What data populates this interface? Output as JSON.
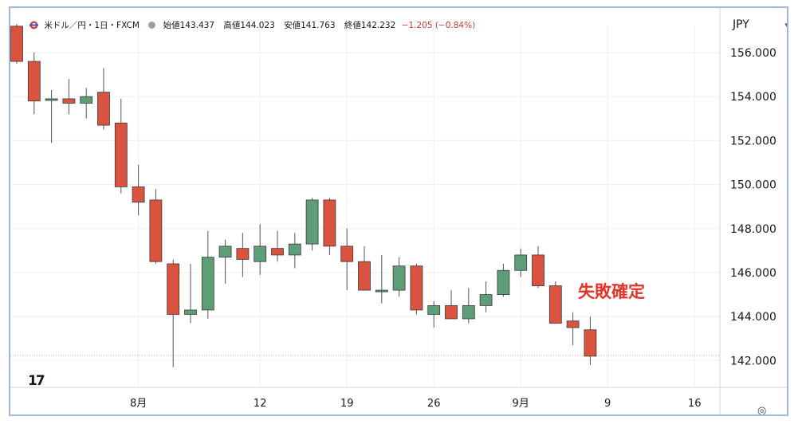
{
  "header": {
    "symbol": "米ドル／円・1日・FXCM",
    "open_label": "始値",
    "open": "143.437",
    "high_label": "高値",
    "high": "144.023",
    "low_label": "安値",
    "low": "141.763",
    "close_label": "終値",
    "close": "142.232",
    "change": "−1.205 (−0.84%)"
  },
  "currency": "JPY",
  "annotation": "失敗確定",
  "colors": {
    "up": "#5d9e76",
    "down": "#d9533f",
    "wick": "#555555"
  },
  "chart_data": {
    "type": "candlestick",
    "y_ticks": [
      "156.000",
      "154.000",
      "152.000",
      "150.000",
      "148.000",
      "146.000",
      "144.000",
      "142.000"
    ],
    "ylim": [
      141.2,
      157.2
    ],
    "x_ticks": [
      {
        "label": "8月",
        "index": 7
      },
      {
        "label": "12",
        "index": 14
      },
      {
        "label": "19",
        "index": 19
      },
      {
        "label": "26",
        "index": 24
      },
      {
        "label": "9月",
        "index": 29
      },
      {
        "label": "9",
        "index": 34
      },
      {
        "label": "16",
        "index": 39
      }
    ],
    "candles": [
      {
        "o": 157.2,
        "h": 157.3,
        "l": 155.5,
        "c": 155.6
      },
      {
        "o": 155.6,
        "h": 156.0,
        "l": 153.2,
        "c": 153.8
      },
      {
        "o": 153.9,
        "h": 154.3,
        "l": 151.9,
        "c": 153.9
      },
      {
        "o": 153.9,
        "h": 154.8,
        "l": 153.2,
        "c": 153.7
      },
      {
        "o": 153.7,
        "h": 154.4,
        "l": 153.0,
        "c": 154.0
      },
      {
        "o": 154.2,
        "h": 155.3,
        "l": 152.5,
        "c": 152.7
      },
      {
        "o": 152.8,
        "h": 153.9,
        "l": 149.6,
        "c": 149.9
      },
      {
        "o": 149.9,
        "h": 150.9,
        "l": 148.6,
        "c": 149.2
      },
      {
        "o": 149.3,
        "h": 149.8,
        "l": 146.4,
        "c": 146.5
      },
      {
        "o": 146.4,
        "h": 146.6,
        "l": 141.7,
        "c": 144.1
      },
      {
        "o": 144.1,
        "h": 146.4,
        "l": 143.7,
        "c": 144.3
      },
      {
        "o": 144.3,
        "h": 147.9,
        "l": 143.9,
        "c": 146.7
      },
      {
        "o": 146.7,
        "h": 147.5,
        "l": 145.5,
        "c": 147.2
      },
      {
        "o": 147.1,
        "h": 147.8,
        "l": 145.8,
        "c": 146.6
      },
      {
        "o": 146.5,
        "h": 148.2,
        "l": 145.9,
        "c": 147.2
      },
      {
        "o": 147.1,
        "h": 147.9,
        "l": 146.5,
        "c": 146.8
      },
      {
        "o": 146.8,
        "h": 147.8,
        "l": 146.2,
        "c": 147.3
      },
      {
        "o": 147.3,
        "h": 149.4,
        "l": 147.0,
        "c": 149.3
      },
      {
        "o": 149.3,
        "h": 149.4,
        "l": 146.8,
        "c": 147.2
      },
      {
        "o": 147.2,
        "h": 148.0,
        "l": 145.2,
        "c": 146.5
      },
      {
        "o": 146.5,
        "h": 147.2,
        "l": 145.2,
        "c": 145.2
      },
      {
        "o": 145.2,
        "h": 146.8,
        "l": 144.6,
        "c": 145.2
      },
      {
        "o": 145.2,
        "h": 146.7,
        "l": 144.9,
        "c": 146.3
      },
      {
        "o": 146.3,
        "h": 146.4,
        "l": 144.1,
        "c": 144.3
      },
      {
        "o": 144.1,
        "h": 144.7,
        "l": 143.5,
        "c": 144.5
      },
      {
        "o": 144.5,
        "h": 145.2,
        "l": 143.9,
        "c": 143.9
      },
      {
        "o": 143.9,
        "h": 145.3,
        "l": 143.7,
        "c": 144.5
      },
      {
        "o": 144.5,
        "h": 145.6,
        "l": 144.2,
        "c": 145.0
      },
      {
        "o": 145.0,
        "h": 146.4,
        "l": 144.9,
        "c": 146.1
      },
      {
        "o": 146.1,
        "h": 147.1,
        "l": 145.8,
        "c": 146.8
      },
      {
        "o": 146.8,
        "h": 147.2,
        "l": 145.3,
        "c": 145.4
      },
      {
        "o": 145.4,
        "h": 145.6,
        "l": 143.7,
        "c": 143.7
      },
      {
        "o": 143.8,
        "h": 144.2,
        "l": 142.7,
        "c": 143.5
      },
      {
        "o": 143.4,
        "h": 144.0,
        "l": 141.8,
        "c": 142.2
      }
    ],
    "last_price": 142.232
  }
}
